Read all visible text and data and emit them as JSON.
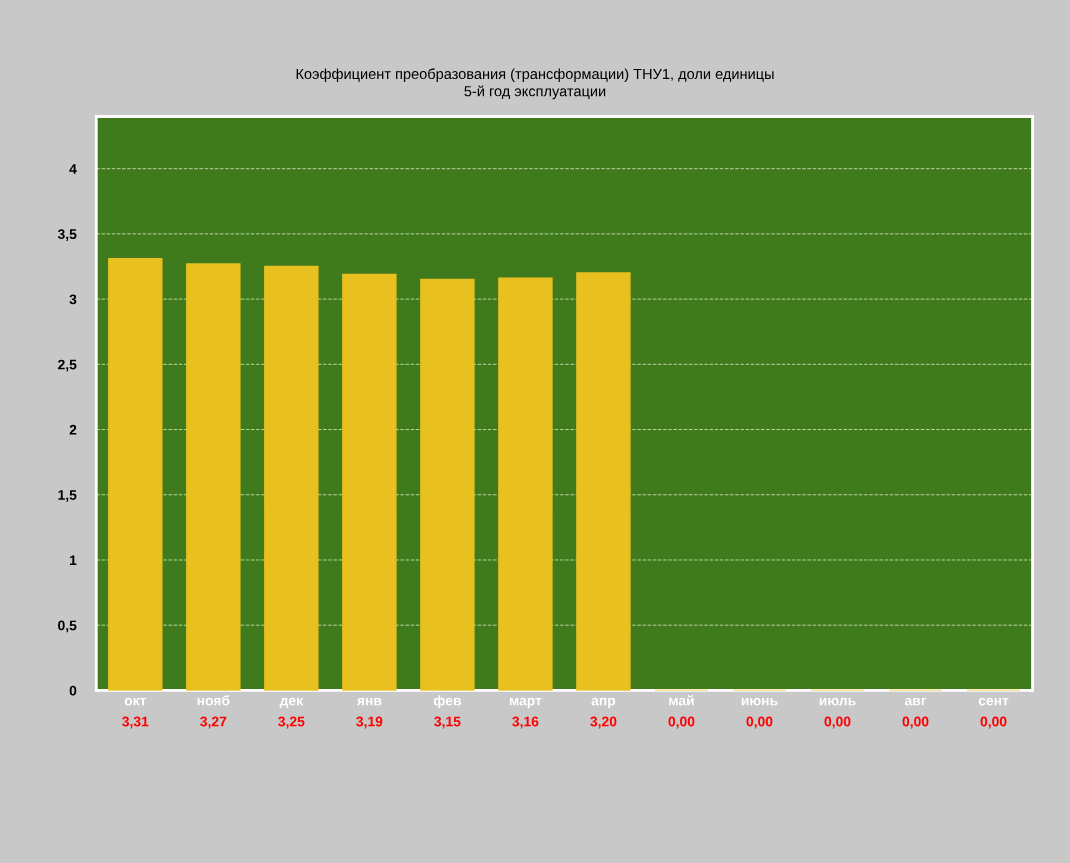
{
  "chart_data": {
    "type": "bar",
    "title": "Коэффициент преобразования (трансформации) ТНУ1, доли единицы",
    "subtitle": "5-й год эксплуатации",
    "categories": [
      "окт",
      "нояб",
      "дек",
      "янв",
      "фев",
      "март",
      "апр",
      "май",
      "июнь",
      "июль",
      "авг",
      "сент"
    ],
    "values": [
      3.31,
      3.27,
      3.25,
      3.19,
      3.15,
      3.16,
      3.2,
      0,
      0,
      0,
      0,
      0
    ],
    "value_labels": [
      "3,31",
      "3,27",
      "3,25",
      "3,19",
      "3,15",
      "3,16",
      "3,20",
      "0,00",
      "0,00",
      "0,00",
      "0,00",
      "0,00"
    ],
    "color": "#e8c020",
    "ylim": [
      0,
      4.4
    ],
    "yticks": [
      0,
      {
        "value": 0.5,
        "label": "0,5"
      },
      1,
      {
        "value": 1.5,
        "label": "1,5"
      },
      2,
      {
        "value": 2.5,
        "label": "2,5"
      },
      3,
      {
        "value": 3.5,
        "label": "3,5"
      },
      4
    ],
    "grid": "y",
    "legend": false
  }
}
